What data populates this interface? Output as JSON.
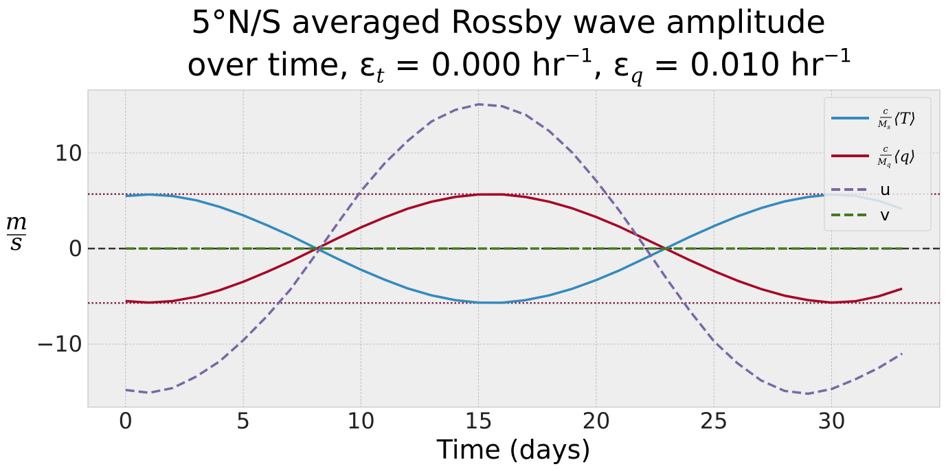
{
  "chart_data": {
    "type": "line",
    "title": {
      "line1": "5°N/S averaged Rossby wave amplitude",
      "line2_prefix": "over time, ε",
      "sub_t": "t",
      "eq1": " = 0.000 hr",
      "sup1": "−1",
      "comma": ",  ε",
      "sub_q": "q",
      "eq2": " = 0.010 hr",
      "sup2": "−1"
    },
    "xlabel": "Time (days)",
    "ylabel": {
      "num": "m",
      "den": "s"
    },
    "xlim": [
      -1.6,
      34.6
    ],
    "ylim": [
      -16.6,
      16.6
    ],
    "xticks": [
      0,
      5,
      10,
      15,
      20,
      25,
      30
    ],
    "yticks": [
      -10,
      0,
      10
    ],
    "ytick_labels": [
      "−10",
      "0",
      "10"
    ],
    "grid": true,
    "legend_position": "top-right",
    "reference_lines": [
      {
        "y": 5.7,
        "style": "dotted",
        "color": "#7a1f3d"
      },
      {
        "y": -5.7,
        "style": "dotted",
        "color": "#7a1f3d"
      },
      {
        "y": 0,
        "style": "dashed",
        "color": "#333333"
      }
    ],
    "series": [
      {
        "name": "c/M_s ⟨T⟩",
        "legend": {
          "c": "c",
          "M": "M",
          "sub": "s",
          "var": "T"
        },
        "color": "#348abd",
        "style": "solid",
        "x": [
          0,
          1,
          2,
          3,
          4,
          5,
          6,
          7,
          8,
          9,
          10,
          11,
          12,
          13,
          14,
          15,
          16,
          17,
          18,
          19,
          20,
          21,
          22,
          23,
          24,
          25,
          26,
          27,
          28,
          29,
          30,
          31,
          32,
          33
        ],
        "y": [
          5.5,
          5.66,
          5.5,
          5.05,
          4.36,
          3.48,
          2.45,
          1.35,
          0.15,
          -1.06,
          -2.21,
          -3.25,
          -4.18,
          -4.9,
          -5.4,
          -5.66,
          -5.67,
          -5.4,
          -4.9,
          -4.2,
          -3.3,
          -2.27,
          -1.1,
          0.08,
          1.25,
          2.35,
          3.36,
          4.23,
          4.93,
          5.4,
          5.66,
          5.52,
          5.0,
          4.15
        ]
      },
      {
        "name": "c/M_q ⟨q⟩",
        "legend": {
          "c": "c",
          "M": "M",
          "sub": "q",
          "var": "q"
        },
        "color": "#a60628",
        "style": "solid",
        "x": [
          0,
          1,
          2,
          3,
          4,
          5,
          6,
          7,
          8,
          9,
          10,
          11,
          12,
          13,
          14,
          15,
          16,
          17,
          18,
          19,
          20,
          21,
          22,
          23,
          24,
          25,
          26,
          27,
          28,
          29,
          30,
          31,
          32,
          33
        ],
        "y": [
          -5.5,
          -5.66,
          -5.5,
          -5.05,
          -4.36,
          -3.48,
          -2.45,
          -1.35,
          -0.15,
          1.06,
          2.21,
          3.25,
          4.18,
          4.9,
          5.4,
          5.66,
          5.67,
          5.4,
          4.9,
          4.2,
          3.3,
          2.27,
          1.1,
          -0.08,
          -1.25,
          -2.35,
          -3.36,
          -4.23,
          -4.93,
          -5.4,
          -5.66,
          -5.52,
          -5.0,
          -4.2
        ]
      },
      {
        "name": "u",
        "color": "#7a68a6",
        "style": "dashed",
        "x": [
          0,
          1,
          2,
          3,
          4,
          5,
          6,
          7,
          8,
          9,
          10,
          11,
          12,
          13,
          14,
          15,
          16,
          17,
          18,
          19,
          20,
          21,
          22,
          23,
          24,
          25,
          26,
          27,
          28,
          29,
          30,
          31,
          32,
          33
        ],
        "y": [
          -14.8,
          -15.1,
          -14.6,
          -13.4,
          -11.8,
          -9.6,
          -7.1,
          -4.3,
          -0.9,
          2.6,
          6.0,
          8.9,
          11.3,
          13.3,
          14.5,
          15.1,
          14.9,
          14.0,
          12.3,
          10.0,
          7.1,
          3.9,
          0.4,
          -3.2,
          -6.6,
          -9.7,
          -12.0,
          -13.8,
          -14.9,
          -15.2,
          -14.7,
          -13.7,
          -12.5,
          -11.0
        ]
      },
      {
        "name": "v",
        "color": "#467821",
        "style": "dashed",
        "x": [
          0,
          33
        ],
        "y": [
          0,
          0
        ]
      }
    ]
  }
}
